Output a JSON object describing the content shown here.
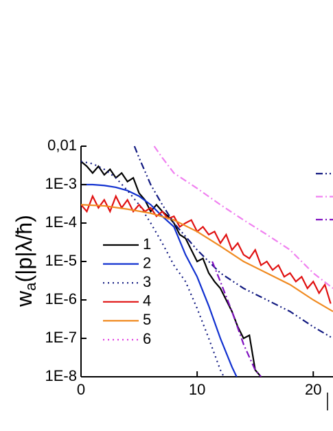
{
  "chart_data": {
    "type": "line",
    "log_y": true,
    "ylabel": {
      "base": "w",
      "sub": "a",
      "rest": "(|p|λ/ħ)"
    },
    "xlim": [
      0,
      21.7
    ],
    "ylim": [
      1e-08,
      0.01
    ],
    "xticks": [
      0,
      10,
      20
    ],
    "yticks": [
      {
        "value": 0.01,
        "label": "0,01"
      },
      {
        "value": 0.001,
        "label": "1E-3"
      },
      {
        "value": 0.0001,
        "label": "1E-4"
      },
      {
        "value": 1e-05,
        "label": "1E-5"
      },
      {
        "value": 1e-06,
        "label": "1E-6"
      },
      {
        "value": 1e-07,
        "label": "1E-7"
      },
      {
        "value": 1e-08,
        "label": "1E-8"
      }
    ],
    "series": [
      {
        "name": "1",
        "color": "#000000",
        "dash": "solid",
        "x": [
          0,
          0.5,
          1,
          1.5,
          2,
          2.5,
          3,
          3.5,
          4,
          4.5,
          5,
          5.5,
          6,
          6.5,
          7,
          7.5,
          8,
          8.5,
          9,
          9.5,
          10,
          10.5,
          11,
          11.5,
          12,
          12.5,
          13,
          13.5,
          14,
          14.5,
          15,
          15.5
        ],
        "values": [
          0.004,
          0.003,
          0.002,
          0.003,
          0.0018,
          0.0025,
          0.0015,
          0.002,
          0.0012,
          0.0015,
          0.0006,
          0.0004,
          0.0002,
          0.0003,
          0.0002,
          0.00015,
          0.0001,
          5e-05,
          4e-05,
          2e-05,
          1e-05,
          1.2e-05,
          5e-06,
          3e-06,
          2e-06,
          1e-06,
          5e-07,
          2e-07,
          1e-07,
          1.2e-07,
          1.5e-08,
          1e-08
        ]
      },
      {
        "name": "2",
        "color": "#1030d0",
        "dash": "solid",
        "x": [
          0,
          1,
          2,
          3,
          4,
          5,
          6,
          7,
          8,
          9,
          10,
          11,
          12,
          13,
          13.4
        ],
        "values": [
          0.001,
          0.001,
          0.00095,
          0.00085,
          0.0007,
          0.0005,
          0.0003,
          0.00015,
          8e-05,
          1.5e-05,
          4e-06,
          7e-07,
          1e-07,
          1.8e-08,
          1e-08
        ]
      },
      {
        "name": "3",
        "color": "#101880",
        "dash": "dot",
        "x": [
          0,
          1,
          2,
          3,
          4,
          5,
          6,
          7,
          8,
          9,
          10,
          11,
          12,
          12.3
        ],
        "values": [
          0.004,
          0.0035,
          0.0025,
          0.0015,
          0.0007,
          0.0003,
          0.0001,
          3e-05,
          8e-06,
          3e-06,
          6e-07,
          1e-07,
          1.5e-08,
          1e-08
        ]
      },
      {
        "name": "4",
        "color": "#e01010",
        "dash": "solid",
        "x": [
          0,
          0.5,
          1,
          1.5,
          2,
          2.5,
          3,
          3.5,
          4,
          4.5,
          5,
          5.5,
          6,
          6.5,
          7,
          7.5,
          8,
          8.5,
          9,
          9.5,
          10,
          10.5,
          11,
          11.5,
          12,
          12.5,
          13,
          13.5,
          14,
          14.5,
          15,
          15.5,
          16,
          16.5,
          17,
          17.5,
          18,
          18.5,
          19,
          19.5,
          20,
          20.5,
          21,
          21.5
        ],
        "values": [
          0.0003,
          0.0002,
          0.0005,
          0.00025,
          0.0004,
          0.0002,
          0.0005,
          0.00025,
          0.0004,
          0.0002,
          0.0003,
          0.0002,
          0.00025,
          0.00015,
          0.0002,
          0.00013,
          0.00015,
          8e-05,
          0.0001,
          0.00012,
          6e-05,
          8e-05,
          5e-05,
          6e-05,
          3e-05,
          5e-05,
          2e-05,
          3e-05,
          1.5e-05,
          1.2e-05,
          2e-05,
          8e-06,
          1e-05,
          6e-06,
          8e-06,
          4e-06,
          5e-06,
          3e-06,
          4e-06,
          2e-06,
          3e-06,
          1.5e-06,
          2.5e-06,
          8e-07
        ]
      },
      {
        "name": "5",
        "color": "#f08a20",
        "dash": "solid",
        "x": [
          0,
          2,
          4,
          6,
          8,
          10,
          12,
          14,
          16,
          18,
          20,
          21.7
        ],
        "values": [
          0.0003,
          0.00028,
          0.00023,
          0.00018,
          0.00012,
          6e-05,
          2.5e-05,
          1e-05,
          5e-06,
          2.5e-06,
          1e-06,
          5e-07
        ]
      },
      {
        "name": "6",
        "color": "#e040e0",
        "dash": "dot",
        "x": [],
        "values": []
      },
      {
        "color": "#101880",
        "dash": "dashdotdot",
        "x": [
          4.6,
          5,
          6,
          7,
          8,
          10,
          12,
          14,
          16,
          18,
          20,
          21.7
        ],
        "values": [
          0.01,
          0.005,
          0.001,
          0.0003,
          0.0001,
          2e-05,
          5e-06,
          2e-06,
          1e-06,
          5e-07,
          2e-07,
          1e-07
        ]
      },
      {
        "color": "#f080f0",
        "dash": "dashdot",
        "x": [
          6.3,
          7,
          8,
          10,
          12,
          14,
          16,
          18,
          20,
          21.7
        ],
        "values": [
          0.01,
          0.005,
          0.002,
          0.0008,
          0.0003,
          0.00012,
          5e-05,
          2e-05,
          5e-06,
          2e-06
        ]
      },
      {
        "color": "#8010c0",
        "dash": "dashdot",
        "x": [
          11.3,
          12,
          13,
          14,
          15,
          15.5
        ],
        "values": [
          1e-05,
          3e-06,
          5e-07,
          7e-08,
          1.5e-08,
          1e-08
        ]
      }
    ]
  }
}
